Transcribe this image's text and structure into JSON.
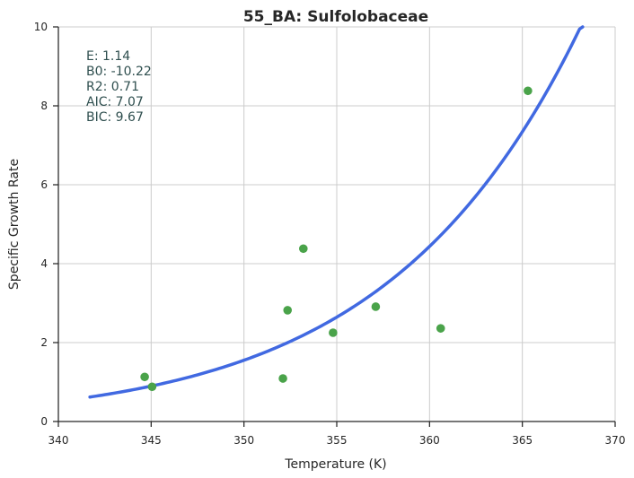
{
  "chart_data": {
    "type": "scatter",
    "title": "55_BA: Sulfolobaceae",
    "xlabel": "Temperature (K)",
    "ylabel": "Specific Growth Rate",
    "xlim": [
      340,
      370
    ],
    "ylim": [
      0,
      10
    ],
    "xticks": [
      340,
      345,
      350,
      355,
      360,
      365,
      370
    ],
    "yticks": [
      0,
      2,
      4,
      6,
      8,
      10
    ],
    "grid": true,
    "series": [
      {
        "kind": "points",
        "color": "#4aa34a",
        "x": [
          344.65,
          345.05,
          352.1,
          352.35,
          353.2,
          354.8,
          357.1,
          360.6,
          365.3
        ],
        "y": [
          1.13,
          0.88,
          1.09,
          2.82,
          4.38,
          2.25,
          2.91,
          2.36,
          8.38
        ]
      },
      {
        "kind": "fit-curve",
        "model": "boltzmann-arrhenius",
        "color": "#4169e1",
        "x_range": [
          341.7,
          368.25
        ],
        "params": {
          "E": 1.14,
          "B0": -10.22
        }
      }
    ],
    "annotations": [
      "E:  1.14",
      "B0:  -10.22",
      "R2:  0.71",
      "AIC: 7.07",
      "BIC: 9.67"
    ]
  }
}
